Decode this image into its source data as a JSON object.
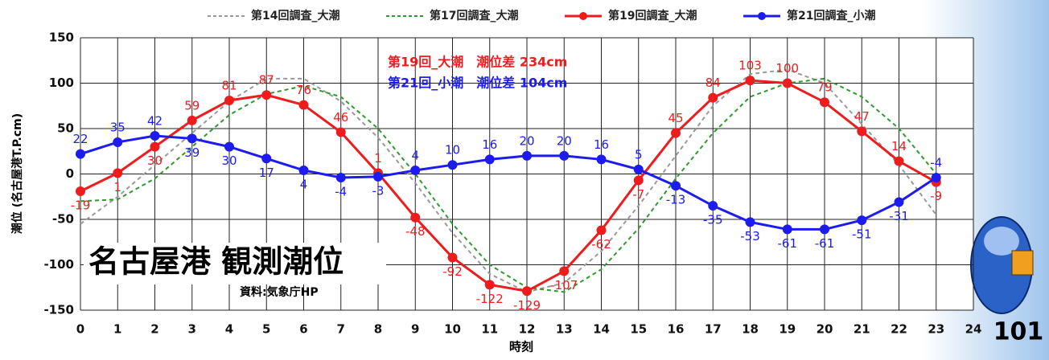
{
  "chart_data": {
    "type": "line",
    "x_label": "時刻",
    "y_label": "潮位 (名古屋港T.P.cm)",
    "x": [
      0,
      1,
      2,
      3,
      4,
      5,
      6,
      7,
      8,
      9,
      10,
      11,
      12,
      13,
      14,
      15,
      16,
      17,
      18,
      19,
      20,
      21,
      22,
      23
    ],
    "series": [
      {
        "name": "第14回調査_大潮",
        "color": "#999999",
        "dashed": true,
        "markers": false,
        "labels": false,
        "values": [
          -55,
          -25,
          10,
          45,
          80,
          105,
          105,
          80,
          40,
          -10,
          -65,
          -110,
          -130,
          -120,
          -85,
          -35,
          20,
          75,
          110,
          115,
          100,
          55,
          10,
          -45
        ]
      },
      {
        "name": "第17回調査_大潮",
        "color": "#2e9a2e",
        "dashed": true,
        "markers": false,
        "labels": false,
        "values": [
          -30,
          -28,
          -5,
          30,
          65,
          88,
          97,
          85,
          50,
          0,
          -55,
          -100,
          -125,
          -130,
          -105,
          -60,
          -5,
          45,
          85,
          100,
          105,
          85,
          50,
          0
        ]
      },
      {
        "name": "第19回調査_大潮",
        "color": "#ee1c1c",
        "dashed": false,
        "markers": true,
        "labels": true,
        "values": [
          -19,
          1,
          30,
          59,
          81,
          87,
          76,
          46,
          1,
          -48,
          -92,
          -122,
          -129,
          -107,
          -62,
          -7,
          45,
          84,
          103,
          100,
          79,
          47,
          14,
          -9
        ]
      },
      {
        "name": "第21回調査_小潮",
        "color": "#1c1cee",
        "dashed": false,
        "markers": true,
        "labels": true,
        "values": [
          22,
          35,
          42,
          39,
          30,
          17,
          4,
          -4,
          -3,
          4,
          10,
          16,
          20,
          20,
          16,
          5,
          -13,
          -35,
          -53,
          -61,
          -61,
          -51,
          -31,
          -4
        ]
      }
    ],
    "xlim": [
      0,
      24
    ],
    "xticks": [
      0,
      1,
      2,
      3,
      4,
      5,
      6,
      7,
      8,
      9,
      10,
      11,
      12,
      13,
      14,
      15,
      16,
      17,
      18,
      19,
      20,
      21,
      22,
      23,
      24
    ],
    "ylim": [
      -150,
      150
    ],
    "yticks": [
      -150,
      -100,
      -50,
      0,
      50,
      100,
      150
    ],
    "grid": true,
    "annotations": [
      {
        "text": "第19回_大潮　潮位差 234cm",
        "color": "#ee1c1c"
      },
      {
        "text": "第21回_小潮　潮位差 104cm",
        "color": "#1c1cee"
      },
      {
        "text": "名古屋港 観測潮位",
        "color": "#000000"
      },
      {
        "text": "資料:気象庁HP",
        "color": "#000000"
      }
    ]
  },
  "page_number": "101"
}
